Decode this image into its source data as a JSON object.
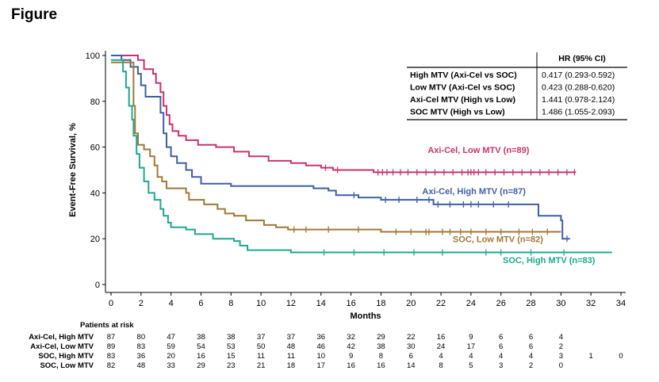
{
  "figure_title": "Figure",
  "chart_data": {
    "type": "line",
    "title": "",
    "xlabel": "Months",
    "ylabel": "Event-Free Survival, %",
    "xlim": [
      0,
      34
    ],
    "ylim": [
      0,
      100
    ],
    "xticks": [
      0,
      2,
      4,
      6,
      8,
      10,
      12,
      14,
      16,
      18,
      20,
      22,
      24,
      26,
      28,
      30,
      32,
      34
    ],
    "yticks": [
      0,
      20,
      40,
      60,
      80,
      100
    ],
    "grid": false,
    "colors": {
      "axi_low": "#c8336e",
      "axi_high": "#3f5fa5",
      "soc_low": "#a17837",
      "soc_high": "#1fa890"
    },
    "series": [
      {
        "name": "Axi-Cel, Low MTV (n=89)",
        "color_key": "axi_low",
        "points": [
          [
            0,
            100
          ],
          [
            1.8,
            100
          ],
          [
            1.8,
            98
          ],
          [
            2.2,
            98
          ],
          [
            2.2,
            94
          ],
          [
            2.8,
            94
          ],
          [
            2.8,
            92
          ],
          [
            3.0,
            92
          ],
          [
            3.0,
            88
          ],
          [
            3.3,
            88
          ],
          [
            3.3,
            84
          ],
          [
            3.5,
            84
          ],
          [
            3.5,
            78
          ],
          [
            3.7,
            78
          ],
          [
            3.7,
            74
          ],
          [
            3.9,
            74
          ],
          [
            3.9,
            70
          ],
          [
            4.1,
            70
          ],
          [
            4.1,
            67
          ],
          [
            4.5,
            67
          ],
          [
            4.5,
            65
          ],
          [
            5.0,
            65
          ],
          [
            5.0,
            63
          ],
          [
            5.8,
            63
          ],
          [
            5.8,
            61
          ],
          [
            7.0,
            61
          ],
          [
            7.0,
            60
          ],
          [
            8.2,
            60
          ],
          [
            8.2,
            58
          ],
          [
            9.2,
            58
          ],
          [
            9.2,
            56
          ],
          [
            10.5,
            56
          ],
          [
            10.5,
            54
          ],
          [
            12.0,
            54
          ],
          [
            12.0,
            53
          ],
          [
            13.0,
            53
          ],
          [
            13.0,
            52
          ],
          [
            14.0,
            52
          ],
          [
            14.0,
            51
          ],
          [
            14.8,
            51
          ],
          [
            14.8,
            50
          ],
          [
            17.5,
            50
          ],
          [
            17.5,
            49
          ],
          [
            31.0,
            49
          ]
        ],
        "censors": [
          14.3,
          15.1,
          17.8,
          18.1,
          18.4,
          18.8,
          19.3,
          19.8,
          20.4,
          21.0,
          21.6,
          22.2,
          22.8,
          23.4,
          23.8,
          24.0,
          24.2,
          24.5,
          25.0,
          25.6,
          26.2,
          26.8,
          27.4,
          28.0,
          28.6,
          29.2,
          29.8,
          30.4,
          30.9
        ]
      },
      {
        "name": "Axi-Cel, High MTV (n=87)",
        "color_key": "axi_high",
        "points": [
          [
            0,
            100
          ],
          [
            0.7,
            100
          ],
          [
            0.7,
            98
          ],
          [
            1.3,
            98
          ],
          [
            1.3,
            95
          ],
          [
            1.8,
            95
          ],
          [
            1.8,
            92
          ],
          [
            2.0,
            92
          ],
          [
            2.0,
            87
          ],
          [
            2.3,
            87
          ],
          [
            2.3,
            82
          ],
          [
            3.3,
            82
          ],
          [
            3.3,
            75
          ],
          [
            3.5,
            75
          ],
          [
            3.5,
            66
          ],
          [
            3.7,
            66
          ],
          [
            3.7,
            60
          ],
          [
            4.0,
            60
          ],
          [
            4.0,
            56
          ],
          [
            4.4,
            56
          ],
          [
            4.4,
            53
          ],
          [
            5.0,
            53
          ],
          [
            5.0,
            50
          ],
          [
            5.4,
            50
          ],
          [
            5.4,
            47
          ],
          [
            6.0,
            47
          ],
          [
            6.0,
            44
          ],
          [
            8.0,
            44
          ],
          [
            8.0,
            43
          ],
          [
            13.5,
            43
          ],
          [
            13.5,
            42
          ],
          [
            14.5,
            42
          ],
          [
            14.5,
            41
          ],
          [
            15.0,
            41
          ],
          [
            15.0,
            39
          ],
          [
            16.5,
            39
          ],
          [
            16.5,
            38
          ],
          [
            18.0,
            38
          ],
          [
            18.0,
            37
          ],
          [
            21.5,
            37
          ],
          [
            21.5,
            35
          ],
          [
            28.5,
            35
          ],
          [
            28.5,
            30
          ],
          [
            30.0,
            30
          ],
          [
            30.0,
            28
          ],
          [
            30.1,
            28
          ],
          [
            30.1,
            20
          ],
          [
            30.6,
            20
          ]
        ],
        "censors": [
          16.2,
          18.3,
          19.2,
          20.4,
          21.2,
          21.8,
          22.6,
          23.5,
          24.0,
          24.5,
          25.5,
          26.5,
          30.4
        ]
      },
      {
        "name": "SOC, Low MTV (n=82)",
        "color_key": "soc_low",
        "points": [
          [
            0,
            97
          ],
          [
            1.5,
            97
          ],
          [
            1.5,
            78
          ],
          [
            1.6,
            78
          ],
          [
            1.6,
            66
          ],
          [
            1.8,
            66
          ],
          [
            1.8,
            61
          ],
          [
            2.2,
            61
          ],
          [
            2.2,
            59
          ],
          [
            2.6,
            59
          ],
          [
            2.6,
            56
          ],
          [
            2.9,
            56
          ],
          [
            2.9,
            52
          ],
          [
            3.1,
            52
          ],
          [
            3.1,
            47
          ],
          [
            3.4,
            47
          ],
          [
            3.4,
            45
          ],
          [
            3.7,
            45
          ],
          [
            3.7,
            42
          ],
          [
            5.0,
            42
          ],
          [
            5.0,
            40
          ],
          [
            5.2,
            40
          ],
          [
            5.2,
            37
          ],
          [
            6.2,
            37
          ],
          [
            6.2,
            35
          ],
          [
            7.1,
            35
          ],
          [
            7.1,
            33
          ],
          [
            7.6,
            33
          ],
          [
            7.6,
            31
          ],
          [
            8.2,
            31
          ],
          [
            8.2,
            30
          ],
          [
            9.0,
            30
          ],
          [
            9.0,
            28
          ],
          [
            10.2,
            28
          ],
          [
            10.2,
            26
          ],
          [
            11.0,
            26
          ],
          [
            11.0,
            25
          ],
          [
            11.8,
            25
          ],
          [
            11.8,
            24
          ],
          [
            18.0,
            24
          ],
          [
            18.0,
            23
          ],
          [
            30.0,
            23
          ]
        ],
        "censors": [
          12.2,
          13.0,
          14.5,
          16.5,
          19.0,
          20.0,
          21.0,
          21.2,
          22.1,
          22.6,
          23.3,
          24.0,
          25.0,
          26.0,
          27.2,
          28.1,
          29.1
        ]
      },
      {
        "name": "SOC, High MTV (n=83)",
        "color_key": "soc_high",
        "points": [
          [
            0,
            98
          ],
          [
            0.8,
            98
          ],
          [
            0.8,
            93
          ],
          [
            1.0,
            93
          ],
          [
            1.0,
            86
          ],
          [
            1.2,
            86
          ],
          [
            1.2,
            78
          ],
          [
            1.4,
            78
          ],
          [
            1.4,
            72
          ],
          [
            1.5,
            72
          ],
          [
            1.5,
            65
          ],
          [
            1.7,
            65
          ],
          [
            1.7,
            57
          ],
          [
            1.9,
            57
          ],
          [
            1.9,
            51
          ],
          [
            2.2,
            51
          ],
          [
            2.2,
            45
          ],
          [
            2.5,
            45
          ],
          [
            2.5,
            40
          ],
          [
            2.9,
            40
          ],
          [
            2.9,
            37
          ],
          [
            3.3,
            37
          ],
          [
            3.3,
            33
          ],
          [
            3.5,
            33
          ],
          [
            3.5,
            30
          ],
          [
            3.8,
            30
          ],
          [
            3.8,
            27
          ],
          [
            4.0,
            27
          ],
          [
            4.0,
            25
          ],
          [
            5.0,
            25
          ],
          [
            5.0,
            24
          ],
          [
            5.6,
            24
          ],
          [
            5.6,
            22
          ],
          [
            6.8,
            22
          ],
          [
            6.8,
            20
          ],
          [
            8.2,
            20
          ],
          [
            8.2,
            19
          ],
          [
            8.6,
            19
          ],
          [
            8.6,
            17
          ],
          [
            9.1,
            17
          ],
          [
            9.1,
            15
          ],
          [
            12.0,
            15
          ],
          [
            12.0,
            14
          ],
          [
            33.4,
            14
          ]
        ],
        "censors": [
          14.2,
          16.2,
          18.2,
          20.2,
          22.1,
          25.0,
          26.0,
          28.0,
          30.2
        ]
      }
    ],
    "curve_labels": [
      {
        "text": "Axi-Cel, Low MTV (n=89)",
        "color_key": "axi_low",
        "x": 24.5,
        "y": 57.5
      },
      {
        "text": "Axi-Cel, High MTV (n=87)",
        "color_key": "axi_high",
        "x": 24.2,
        "y": 39.5
      },
      {
        "text": "SOC, Low MTV (n=82)",
        "color_key": "soc_low",
        "x": 25.8,
        "y": 18.5
      },
      {
        "text": "SOC, High MTV (n=83)",
        "color_key": "soc_high",
        "x": 29.2,
        "y": 9.3
      }
    ]
  },
  "hr_table": {
    "header": "HR (95% CI)",
    "rows": [
      {
        "label": "High MTV (Axi-Cel vs SOC)",
        "value": "0.417 (0.293-0.592)"
      },
      {
        "label": "Low MTV (Axi-Cel vs SOC)",
        "value": "0.423 (0.288-0.620)"
      },
      {
        "label": "Axi-Cel MTV (High vs Low)",
        "value": "1.441 (0.978-2.124)"
      },
      {
        "label": "SOC MTV (High vs Low)",
        "value": "1.486 (1.055-2.093)"
      }
    ]
  },
  "risk_table": {
    "title": "Patients at risk",
    "rows": [
      {
        "label": "Axi-Cel, High MTV",
        "values": [
          "87",
          "80",
          "47",
          "38",
          "38",
          "37",
          "37",
          "36",
          "32",
          "29",
          "22",
          "16",
          "9",
          "6",
          "6",
          "4"
        ]
      },
      {
        "label": "Axi-Cel, Low MTV",
        "values": [
          "89",
          "83",
          "59",
          "54",
          "53",
          "50",
          "48",
          "46",
          "42",
          "38",
          "30",
          "24",
          "17",
          "6",
          "6",
          "2"
        ]
      },
      {
        "label": "SOC, High MTV",
        "values": [
          "83",
          "36",
          "20",
          "16",
          "15",
          "11",
          "11",
          "10",
          "9",
          "8",
          "6",
          "4",
          "4",
          "4",
          "4",
          "3",
          "1",
          "0"
        ]
      },
      {
        "label": "SOC, Low MTV",
        "values": [
          "82",
          "48",
          "33",
          "29",
          "23",
          "21",
          "18",
          "17",
          "16",
          "16",
          "14",
          "8",
          "5",
          "3",
          "2",
          "0"
        ]
      }
    ]
  }
}
